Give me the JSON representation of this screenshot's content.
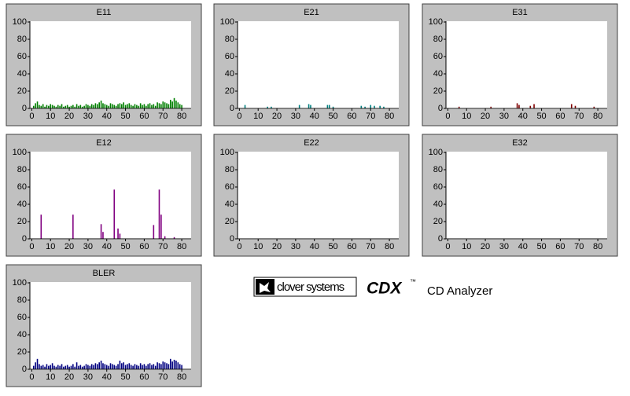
{
  "chart_data": [
    {
      "type": "bar",
      "title": "E11",
      "color": "#008000",
      "x": [
        1,
        2,
        3,
        4,
        5,
        6,
        7,
        8,
        9,
        10,
        11,
        12,
        13,
        14,
        15,
        16,
        17,
        18,
        19,
        20,
        21,
        22,
        23,
        24,
        25,
        26,
        27,
        28,
        29,
        30,
        31,
        32,
        33,
        34,
        35,
        36,
        37,
        38,
        39,
        40,
        41,
        42,
        43,
        44,
        45,
        46,
        47,
        48,
        49,
        50,
        51,
        52,
        53,
        54,
        55,
        56,
        57,
        58,
        59,
        60,
        61,
        62,
        63,
        64,
        65,
        66,
        67,
        68,
        69,
        70,
        71,
        72,
        73,
        74,
        75,
        76,
        77,
        78,
        79,
        80
      ],
      "values": [
        3,
        6,
        8,
        4,
        3,
        5,
        2,
        4,
        3,
        5,
        4,
        3,
        2,
        4,
        3,
        5,
        2,
        3,
        4,
        2,
        3,
        4,
        2,
        5,
        3,
        4,
        2,
        3,
        5,
        4,
        3,
        5,
        4,
        6,
        5,
        7,
        9,
        6,
        5,
        4,
        3,
        6,
        5,
        4,
        3,
        5,
        6,
        5,
        7,
        4,
        5,
        6,
        4,
        3,
        5,
        4,
        3,
        6,
        4,
        5,
        3,
        5,
        6,
        4,
        5,
        3,
        7,
        6,
        5,
        8,
        7,
        6,
        5,
        10,
        8,
        12,
        9,
        7,
        5,
        4
      ],
      "xlim": [
        -1,
        85
      ],
      "ylim": [
        0,
        100
      ],
      "xticks": [
        0,
        10,
        20,
        30,
        40,
        50,
        60,
        70,
        80
      ],
      "yticks": [
        0,
        20,
        40,
        60,
        80,
        100
      ]
    },
    {
      "type": "bar",
      "title": "E21",
      "color": "#008080",
      "x": [
        3,
        15,
        17,
        32,
        37,
        38,
        47,
        48,
        50,
        65,
        67,
        70,
        72,
        75,
        77
      ],
      "values": [
        4,
        2,
        2,
        4,
        5,
        4,
        4,
        4,
        2,
        3,
        2,
        4,
        3,
        3,
        2
      ],
      "xlim": [
        -1,
        85
      ],
      "ylim": [
        0,
        100
      ],
      "xticks": [
        0,
        10,
        20,
        30,
        40,
        50,
        60,
        70,
        80
      ],
      "yticks": [
        0,
        20,
        40,
        60,
        80,
        100
      ]
    },
    {
      "type": "bar",
      "title": "E31",
      "color": "#800000",
      "x": [
        6,
        23,
        37,
        38,
        44,
        46,
        66,
        68,
        78
      ],
      "values": [
        2,
        2,
        6,
        4,
        3,
        5,
        5,
        3,
        2
      ],
      "xlim": [
        -1,
        85
      ],
      "ylim": [
        0,
        100
      ],
      "xticks": [
        0,
        10,
        20,
        30,
        40,
        50,
        60,
        70,
        80
      ],
      "yticks": [
        0,
        20,
        40,
        60,
        80,
        100
      ]
    },
    {
      "type": "bar",
      "title": "E12",
      "color": "#800080",
      "x": [
        5,
        22,
        37,
        38,
        44,
        46,
        47,
        65,
        68,
        69,
        71,
        76
      ],
      "values": [
        28,
        28,
        17,
        8,
        57,
        12,
        6,
        16,
        57,
        28,
        3,
        2
      ],
      "xlim": [
        -1,
        85
      ],
      "ylim": [
        0,
        100
      ],
      "xticks": [
        0,
        10,
        20,
        30,
        40,
        50,
        60,
        70,
        80
      ],
      "yticks": [
        0,
        20,
        40,
        60,
        80,
        100
      ]
    },
    {
      "type": "bar",
      "title": "E22",
      "color": "#808000",
      "x": [],
      "values": [],
      "xlim": [
        -1,
        85
      ],
      "ylim": [
        0,
        100
      ],
      "xticks": [
        0,
        10,
        20,
        30,
        40,
        50,
        60,
        70,
        80
      ],
      "yticks": [
        0,
        20,
        40,
        60,
        80,
        100
      ]
    },
    {
      "type": "bar",
      "title": "E32",
      "color": "#808080",
      "x": [],
      "values": [],
      "xlim": [
        -1,
        85
      ],
      "ylim": [
        0,
        100
      ],
      "xticks": [
        0,
        10,
        20,
        30,
        40,
        50,
        60,
        70,
        80
      ],
      "yticks": [
        0,
        20,
        40,
        60,
        80,
        100
      ]
    },
    {
      "type": "bar",
      "title": "BLER",
      "color": "#000080",
      "x": [
        1,
        2,
        3,
        4,
        5,
        6,
        7,
        8,
        9,
        10,
        11,
        12,
        13,
        14,
        15,
        16,
        17,
        18,
        19,
        20,
        21,
        22,
        23,
        24,
        25,
        26,
        27,
        28,
        29,
        30,
        31,
        32,
        33,
        34,
        35,
        36,
        37,
        38,
        39,
        40,
        41,
        42,
        43,
        44,
        45,
        46,
        47,
        48,
        49,
        50,
        51,
        52,
        53,
        54,
        55,
        56,
        57,
        58,
        59,
        60,
        61,
        62,
        63,
        64,
        65,
        66,
        67,
        68,
        69,
        70,
        71,
        72,
        73,
        74,
        75,
        76,
        77,
        78,
        79,
        80
      ],
      "values": [
        4,
        8,
        12,
        6,
        4,
        5,
        3,
        6,
        4,
        5,
        7,
        4,
        3,
        5,
        4,
        6,
        3,
        4,
        5,
        3,
        4,
        6,
        3,
        8,
        4,
        5,
        3,
        4,
        6,
        5,
        4,
        6,
        5,
        7,
        6,
        8,
        10,
        7,
        6,
        5,
        4,
        7,
        6,
        5,
        4,
        6,
        10,
        7,
        8,
        5,
        6,
        7,
        5,
        4,
        6,
        5,
        4,
        7,
        5,
        6,
        4,
        6,
        7,
        5,
        6,
        4,
        8,
        7,
        6,
        9,
        8,
        7,
        6,
        12,
        9,
        11,
        10,
        8,
        6,
        5
      ],
      "xlim": [
        -1,
        85
      ],
      "ylim": [
        0,
        100
      ],
      "xticks": [
        0,
        10,
        20,
        30,
        40,
        50,
        60,
        70,
        80
      ],
      "yticks": [
        0,
        20,
        40,
        60,
        80,
        100
      ]
    }
  ],
  "branding": {
    "company": "clover systems",
    "product": "CDX",
    "trademark": "™",
    "subtitle": "CD Analyzer"
  }
}
